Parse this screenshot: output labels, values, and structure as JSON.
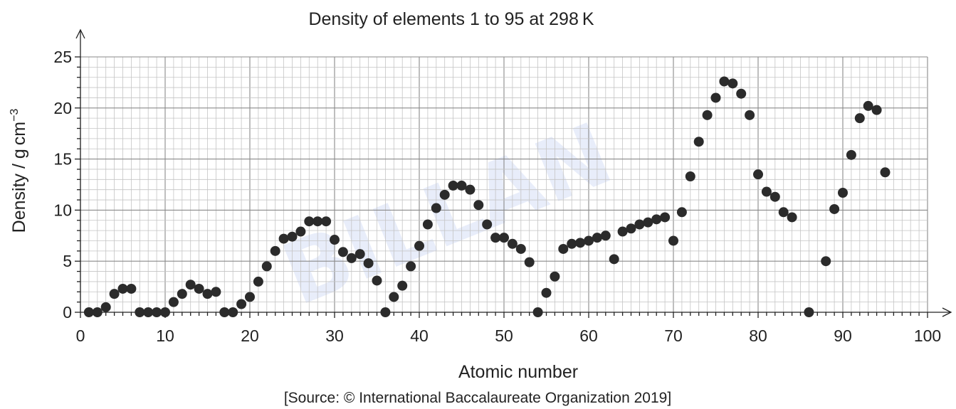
{
  "chart_data": {
    "type": "scatter",
    "title": "Density of elements 1 to 95 at 298 K",
    "xlabel": "Atomic number",
    "ylabel": "Density / g cm",
    "ylabel_superscript": "−3",
    "xlim": [
      0,
      100
    ],
    "ylim": [
      0,
      25
    ],
    "x_ticks": [
      0,
      10,
      20,
      30,
      40,
      50,
      60,
      70,
      80,
      90,
      100
    ],
    "y_ticks": [
      0,
      5,
      10,
      15,
      20,
      25
    ],
    "grid": true,
    "point_color": "#2b2b2b",
    "source": "[Source: © International Baccalaureate Organization 2019]",
    "points": [
      {
        "x": 1,
        "y": 0
      },
      {
        "x": 2,
        "y": 0
      },
      {
        "x": 3,
        "y": 0.5
      },
      {
        "x": 4,
        "y": 1.8
      },
      {
        "x": 5,
        "y": 2.3
      },
      {
        "x": 6,
        "y": 2.3
      },
      {
        "x": 7,
        "y": 0
      },
      {
        "x": 8,
        "y": 0
      },
      {
        "x": 9,
        "y": 0
      },
      {
        "x": 10,
        "y": 0
      },
      {
        "x": 11,
        "y": 1.0
      },
      {
        "x": 12,
        "y": 1.8
      },
      {
        "x": 13,
        "y": 2.7
      },
      {
        "x": 14,
        "y": 2.3
      },
      {
        "x": 15,
        "y": 1.8
      },
      {
        "x": 16,
        "y": 2.0
      },
      {
        "x": 17,
        "y": 0
      },
      {
        "x": 18,
        "y": 0
      },
      {
        "x": 19,
        "y": 0.8
      },
      {
        "x": 20,
        "y": 1.5
      },
      {
        "x": 21,
        "y": 3.0
      },
      {
        "x": 22,
        "y": 4.5
      },
      {
        "x": 23,
        "y": 6.0
      },
      {
        "x": 24,
        "y": 7.2
      },
      {
        "x": 25,
        "y": 7.4
      },
      {
        "x": 26,
        "y": 7.9
      },
      {
        "x": 27,
        "y": 8.9
      },
      {
        "x": 28,
        "y": 8.9
      },
      {
        "x": 29,
        "y": 8.9
      },
      {
        "x": 30,
        "y": 7.1
      },
      {
        "x": 31,
        "y": 5.9
      },
      {
        "x": 32,
        "y": 5.3
      },
      {
        "x": 33,
        "y": 5.7
      },
      {
        "x": 34,
        "y": 4.8
      },
      {
        "x": 35,
        "y": 3.1
      },
      {
        "x": 36,
        "y": 0
      },
      {
        "x": 37,
        "y": 1.5
      },
      {
        "x": 38,
        "y": 2.6
      },
      {
        "x": 39,
        "y": 4.5
      },
      {
        "x": 40,
        "y": 6.5
      },
      {
        "x": 41,
        "y": 8.6
      },
      {
        "x": 42,
        "y": 10.2
      },
      {
        "x": 43,
        "y": 11.5
      },
      {
        "x": 44,
        "y": 12.4
      },
      {
        "x": 45,
        "y": 12.4
      },
      {
        "x": 46,
        "y": 12.0
      },
      {
        "x": 47,
        "y": 10.5
      },
      {
        "x": 48,
        "y": 8.6
      },
      {
        "x": 49,
        "y": 7.3
      },
      {
        "x": 50,
        "y": 7.3
      },
      {
        "x": 51,
        "y": 6.7
      },
      {
        "x": 52,
        "y": 6.2
      },
      {
        "x": 53,
        "y": 4.9
      },
      {
        "x": 54,
        "y": 0
      },
      {
        "x": 55,
        "y": 1.9
      },
      {
        "x": 56,
        "y": 3.5
      },
      {
        "x": 57,
        "y": 6.2
      },
      {
        "x": 58,
        "y": 6.7
      },
      {
        "x": 59,
        "y": 6.8
      },
      {
        "x": 60,
        "y": 7.0
      },
      {
        "x": 61,
        "y": 7.3
      },
      {
        "x": 62,
        "y": 7.5
      },
      {
        "x": 63,
        "y": 5.2
      },
      {
        "x": 64,
        "y": 7.9
      },
      {
        "x": 65,
        "y": 8.2
      },
      {
        "x": 66,
        "y": 8.6
      },
      {
        "x": 67,
        "y": 8.8
      },
      {
        "x": 68,
        "y": 9.1
      },
      {
        "x": 69,
        "y": 9.3
      },
      {
        "x": 70,
        "y": 7.0
      },
      {
        "x": 71,
        "y": 9.8
      },
      {
        "x": 72,
        "y": 13.3
      },
      {
        "x": 73,
        "y": 16.7
      },
      {
        "x": 74,
        "y": 19.3
      },
      {
        "x": 75,
        "y": 21.0
      },
      {
        "x": 76,
        "y": 22.6
      },
      {
        "x": 77,
        "y": 22.4
      },
      {
        "x": 78,
        "y": 21.4
      },
      {
        "x": 79,
        "y": 19.3
      },
      {
        "x": 80,
        "y": 13.5
      },
      {
        "x": 81,
        "y": 11.8
      },
      {
        "x": 82,
        "y": 11.3
      },
      {
        "x": 83,
        "y": 9.8
      },
      {
        "x": 84,
        "y": 9.3
      },
      {
        "x": 86,
        "y": 0
      },
      {
        "x": 88,
        "y": 5.0
      },
      {
        "x": 89,
        "y": 10.1
      },
      {
        "x": 90,
        "y": 11.7
      },
      {
        "x": 91,
        "y": 15.4
      },
      {
        "x": 92,
        "y": 19.0
      },
      {
        "x": 93,
        "y": 20.2
      },
      {
        "x": 94,
        "y": 19.8
      },
      {
        "x": 95,
        "y": 13.7
      }
    ]
  },
  "watermark": {
    "text": "BILLAN",
    "color": "#4a6fd8"
  }
}
